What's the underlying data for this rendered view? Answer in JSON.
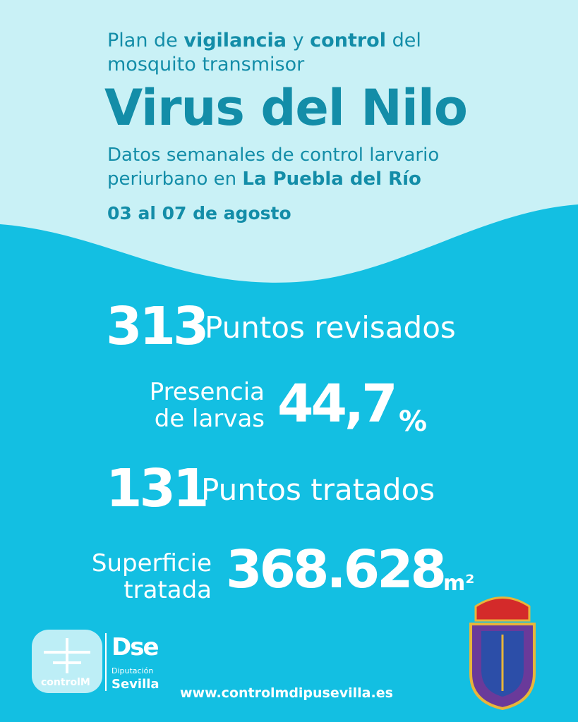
{
  "header": {
    "line1": [
      "Plan de",
      "vigilancia",
      "y",
      "control",
      "del"
    ],
    "line2": "mosquito transmisor",
    "title": "Virus del Nilo",
    "subtitle1": "Datos semanales de control larvario",
    "subtitle2": [
      "periurbano en",
      "La Puebla del Río"
    ],
    "date": "03 al 07 de agosto"
  },
  "stats": [
    {
      "value": "313",
      "label": "Puntos revisados"
    },
    {
      "label": [
        "Presencia",
        "de larvas"
      ],
      "value": "44,7",
      "unit": "%"
    },
    {
      "value": "131",
      "label": "Puntos tratados"
    },
    {
      "label": [
        "Superficie",
        "tratada"
      ],
      "value": "368.628",
      "unit": "m²"
    }
  ],
  "footer": {
    "logo1": "controlM",
    "logo2": [
      "Dse",
      "Diputación",
      "Sevilla"
    ],
    "url": "www.controlmdipusevilla.es"
  }
}
